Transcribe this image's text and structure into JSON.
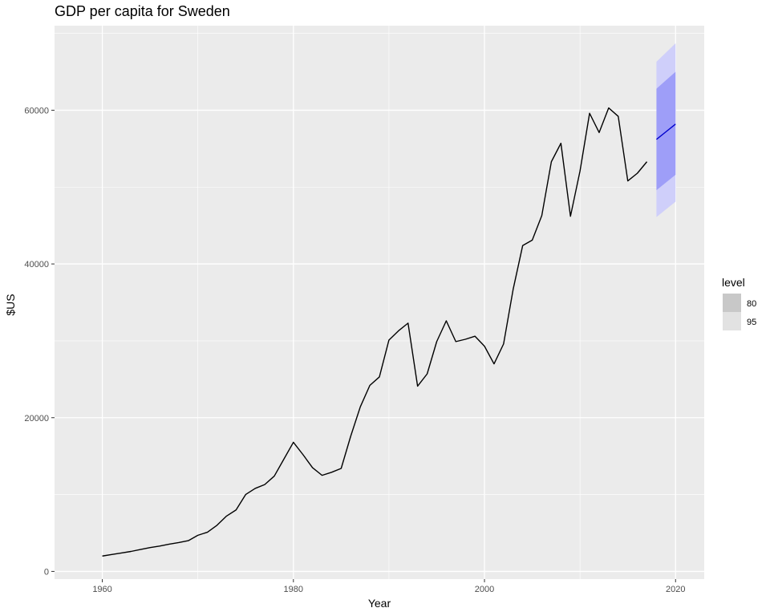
{
  "chart_data": {
    "type": "line",
    "title": "GDP per capita for Sweden",
    "xlabel": "Year",
    "ylabel": "$US",
    "xlim": [
      1955,
      2023
    ],
    "ylim": [
      -1000,
      71000
    ],
    "x_ticks": [
      1960,
      1980,
      2000,
      2020
    ],
    "x_tick_labels": [
      "1960",
      "1980",
      "2000",
      "2020"
    ],
    "y_ticks": [
      0,
      20000,
      40000,
      60000
    ],
    "y_tick_labels": [
      "0",
      "20000",
      "40000",
      "60000"
    ],
    "grid": true,
    "series": [
      {
        "color": "#000000",
        "x": [
          1960,
          1961,
          1962,
          1963,
          1964,
          1965,
          1966,
          1967,
          1968,
          1969,
          1970,
          1971,
          1972,
          1973,
          1974,
          1975,
          1976,
          1977,
          1978,
          1979,
          1980,
          1981,
          1982,
          1983,
          1984,
          1985,
          1986,
          1987,
          1988,
          1989,
          1990,
          1991,
          1992,
          1993,
          1994,
          1995,
          1996,
          1997,
          1998,
          1999,
          2000,
          2001,
          2002,
          2003,
          2004,
          2005,
          2006,
          2007,
          2008,
          2009,
          2010,
          2011,
          2012,
          2013,
          2014,
          2015,
          2016,
          2017
        ],
        "y": [
          2000,
          2200,
          2400,
          2600,
          2850,
          3100,
          3300,
          3550,
          3750,
          4000,
          4700,
          5100,
          6000,
          7200,
          8000,
          10000,
          10800,
          11300,
          12400,
          14600,
          16800,
          15200,
          13500,
          12500,
          12900,
          13400,
          17600,
          21400,
          24200,
          25300,
          30100,
          31300,
          32300,
          24100,
          25700,
          29900,
          32600,
          29900,
          30200,
          30600,
          29300,
          27000,
          29600,
          36700,
          42400,
          43100,
          46300,
          53300,
          55700,
          46200,
          52100,
          59600,
          57100,
          60300,
          59200,
          50800,
          51800,
          53300
        ]
      }
    ],
    "forecast": {
      "color": "#0000cc",
      "x": [
        2018,
        2019,
        2020
      ],
      "mean": [
        56200,
        57200,
        58200
      ],
      "level80_lower": [
        49600,
        50600,
        51600
      ],
      "level80_upper": [
        62800,
        63900,
        65000
      ],
      "level95_lower": [
        46100,
        47100,
        48100
      ],
      "level95_upper": [
        66300,
        67500,
        68700
      ]
    },
    "legend": {
      "title": "level",
      "position": "right",
      "items": [
        {
          "label": "80",
          "color": "#c8c8c8"
        },
        {
          "label": "95",
          "color": "#e2e2e2"
        }
      ]
    }
  }
}
